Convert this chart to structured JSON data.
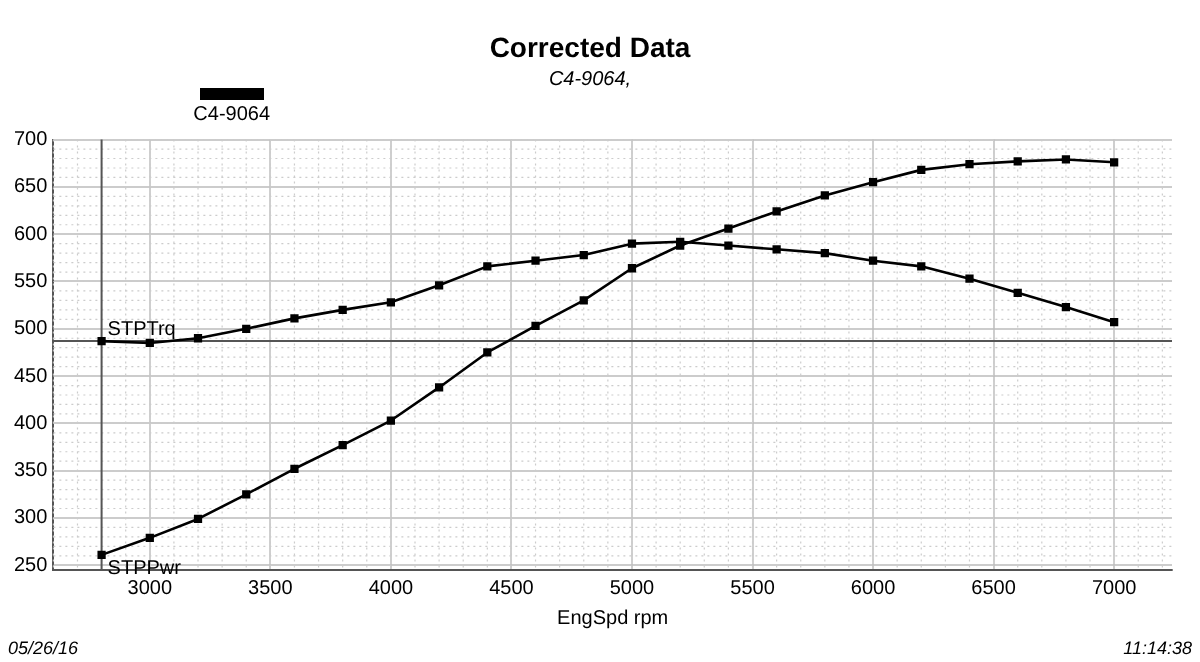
{
  "chart_data": {
    "type": "line",
    "title": "Corrected Data",
    "subtitle": "C4-9064,",
    "xlabel": "EngSpd rpm",
    "legend_title": "C4-9064",
    "x": [
      2800,
      3000,
      3200,
      3400,
      3600,
      3800,
      4000,
      4200,
      4400,
      4600,
      4800,
      5000,
      5200,
      5400,
      5600,
      5800,
      6000,
      6200,
      6400,
      6600,
      6800,
      7000
    ],
    "series": [
      {
        "name": "STPTrq",
        "color": "#000000",
        "values": [
          487,
          485,
          490,
          500,
          511,
          520,
          528,
          546,
          566,
          572,
          578,
          590,
          592,
          588,
          584,
          580,
          572,
          566,
          553,
          538,
          523,
          507
        ]
      },
      {
        "name": "STPPwr",
        "color": "#000000",
        "values": [
          261,
          279,
          299,
          325,
          352,
          377,
          403,
          438,
          475,
          503,
          530,
          564,
          588,
          606,
          624,
          641,
          655,
          668,
          674,
          677,
          679,
          676
        ]
      }
    ],
    "xlim": [
      2600,
      7240
    ],
    "xticks": [
      3000,
      3500,
      4000,
      4500,
      5000,
      5500,
      6000,
      6500,
      7000
    ],
    "ylim": [
      245,
      700
    ],
    "yticks": [
      250,
      300,
      350,
      400,
      450,
      500,
      550,
      600,
      650,
      700
    ],
    "ref_lines": [
      {
        "axis": "y",
        "value": 487,
        "color": "#555555"
      },
      {
        "axis": "x",
        "value": 2800,
        "color": "#555555"
      }
    ],
    "annotations": [
      "05/26/16",
      "11:14:38"
    ],
    "grid": true,
    "marker": "square",
    "line_style": "solid"
  }
}
